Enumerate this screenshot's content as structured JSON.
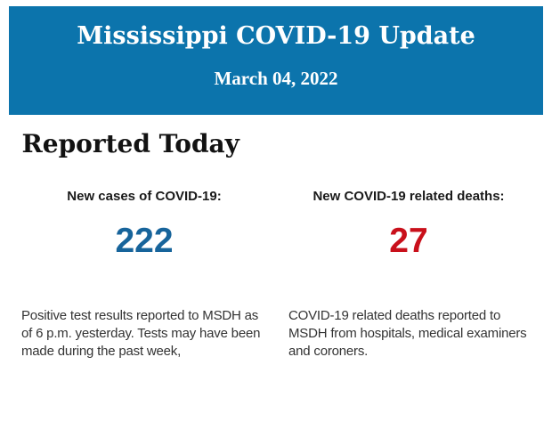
{
  "page": {
    "background": "#ffffff"
  },
  "header": {
    "background": "#0c74ac",
    "text_color": "#ffffff",
    "title": "Mississippi COVID-19 Update",
    "date": "March 04, 2022"
  },
  "main": {
    "section_title": "Reported Today",
    "stats": [
      {
        "label": "New cases of COVID-19:",
        "value": "222",
        "value_color": "#17649b",
        "description": "Positive test results reported to MSDH as\nof 6 p.m. yesterday. Tests may have been\nmade during the past week,"
      },
      {
        "label": "New COVID-19 related deaths:",
        "value": "27",
        "value_color": "#c9101b",
        "description": "COVID-19 related deaths reported to\nMSDH from hospitals, medical examiners\nand coroners."
      }
    ]
  }
}
